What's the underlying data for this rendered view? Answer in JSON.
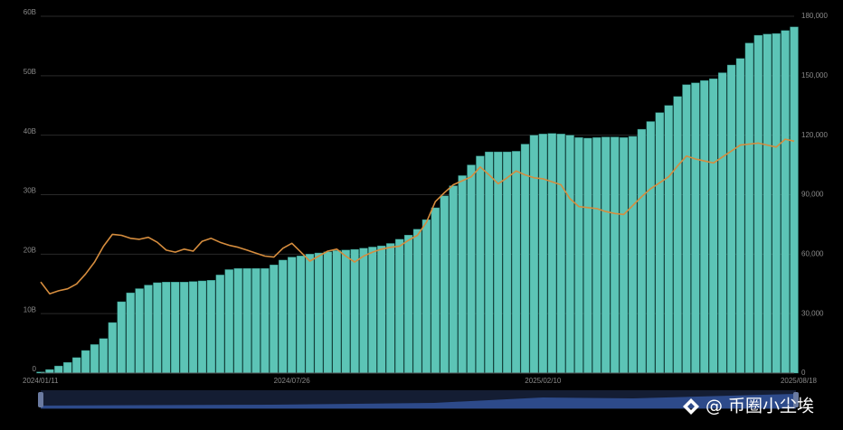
{
  "chart_data": {
    "type": "bar",
    "categories": [
      "2024/01/11",
      null,
      null,
      null,
      null,
      null,
      null,
      null,
      null,
      null,
      null,
      null,
      null,
      null,
      null,
      null,
      null,
      null,
      null,
      null,
      null,
      null,
      null,
      null,
      null,
      null,
      null,
      null,
      "2024/07/26",
      null,
      null,
      null,
      null,
      null,
      null,
      null,
      null,
      null,
      null,
      null,
      null,
      null,
      null,
      null,
      null,
      null,
      null,
      null,
      null,
      null,
      null,
      null,
      null,
      null,
      null,
      null,
      "2025/02/10",
      null,
      null,
      null,
      null,
      null,
      null,
      null,
      null,
      null,
      null,
      null,
      null,
      null,
      null,
      null,
      null,
      null,
      null,
      null,
      null,
      null,
      null,
      null,
      null,
      null,
      null,
      null,
      "2025/08/18"
    ],
    "series": [
      {
        "type": "bar",
        "color": "#5cc4b6",
        "axis": "y",
        "values": [
          0.2,
          0.6,
          1.2,
          1.8,
          2.6,
          3.8,
          4.8,
          5.8,
          8.5,
          12,
          13.5,
          14.2,
          14.8,
          15.2,
          15.3,
          15.3,
          15.3,
          15.4,
          15.5,
          15.6,
          16.5,
          17.4,
          17.6,
          17.6,
          17.6,
          17.6,
          18.2,
          19,
          19.5,
          19.7,
          20,
          20.2,
          20.4,
          20.6,
          20.7,
          20.8,
          21,
          21.2,
          21.4,
          21.8,
          22.5,
          23.2,
          24.2,
          25.8,
          27.8,
          29.8,
          31.5,
          33.2,
          35,
          36.5,
          37.2,
          37.2,
          37.2,
          37.3,
          38.5,
          40,
          40.2,
          40.3,
          40.2,
          40,
          39.6,
          39.5,
          39.6,
          39.7,
          39.7,
          39.6,
          39.8,
          41,
          42.3,
          43.8,
          45,
          46.5,
          48.5,
          48.8,
          49.2,
          49.5,
          50.5,
          51.8,
          52.9,
          55.5,
          56.8,
          57,
          57.1,
          57.6,
          58.2
        ]
      },
      {
        "type": "line",
        "color": "#d68d3e",
        "axis": "y2",
        "values": [
          46000,
          40000,
          41500,
          42500,
          45000,
          50000,
          56000,
          64000,
          70000,
          69500,
          68000,
          67500,
          68500,
          66000,
          62000,
          61000,
          62500,
          61500,
          66500,
          68000,
          66000,
          64500,
          63500,
          62000,
          60500,
          59000,
          58500,
          63000,
          65500,
          61000,
          56500,
          59000,
          61500,
          62500,
          59000,
          56000,
          59000,
          61000,
          62500,
          63500,
          64000,
          67000,
          69500,
          76000,
          86500,
          91000,
          95000,
          97000,
          99000,
          104000,
          100000,
          95500,
          98500,
          102000,
          100000,
          98500,
          98000,
          96500,
          95000,
          88000,
          84000,
          83500,
          83000,
          81500,
          80500,
          80000,
          84500,
          89000,
          93000,
          96000,
          99000,
          104500,
          109500,
          108000,
          107000,
          106000,
          109000,
          112000,
          115000,
          115500,
          116000,
          115000,
          114000,
          118000,
          117000
        ]
      }
    ],
    "ylim": [
      0,
      60
    ],
    "yticks": [
      0,
      {
        "value": 10,
        "label": "10B"
      },
      {
        "value": 20,
        "label": "20B"
      },
      {
        "value": 30,
        "label": "30B"
      },
      {
        "value": 40,
        "label": "40B"
      },
      {
        "value": 50,
        "label": "50B"
      },
      {
        "value": 60,
        "label": "60B"
      }
    ],
    "y2lim": [
      0,
      180000
    ],
    "y2ticks": [
      0,
      {
        "value": 30000,
        "label": "30,000"
      },
      {
        "value": 60000,
        "label": "60,000"
      },
      {
        "value": 90000,
        "label": "90,000"
      },
      {
        "value": 120000,
        "label": "120,000"
      },
      {
        "value": 150000,
        "label": "150,000"
      },
      {
        "value": 180000,
        "label": "180,000"
      }
    ],
    "grid": true,
    "watermark": "@ 币圈小尘埃"
  }
}
